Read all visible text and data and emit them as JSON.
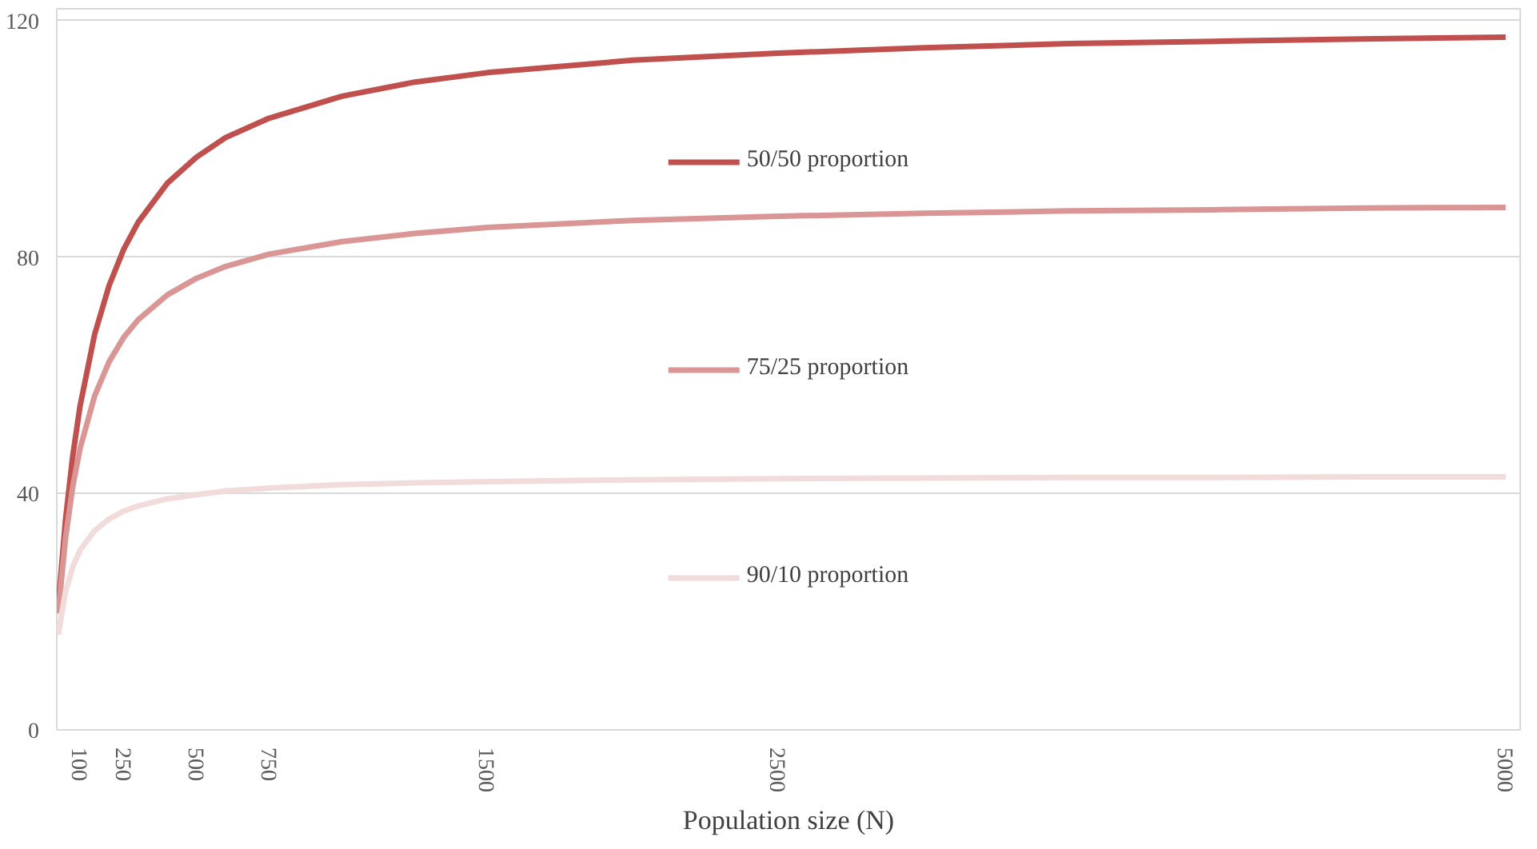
{
  "chart_data": {
    "type": "line",
    "xlabel": "Population size (N)",
    "x": [
      25,
      50,
      75,
      100,
      150,
      200,
      250,
      300,
      400,
      500,
      600,
      750,
      1000,
      1250,
      1500,
      2000,
      2500,
      3000,
      3500,
      4000,
      4500,
      5000
    ],
    "series": [
      {
        "name": "50/50 proportion",
        "color": "#c0504d",
        "values": [
          21,
          35.5,
          46.4,
          54.8,
          66.9,
          75.2,
          81.3,
          85.9,
          92.5,
          96.9,
          100.2,
          103.5,
          107.2,
          109.6,
          111.2,
          113.3,
          114.5,
          115.4,
          116.1,
          116.5,
          116.9,
          117.2
        ]
      },
      {
        "name": "75/25 proportion",
        "color": "#d99694",
        "values": [
          19.7,
          32.4,
          41.2,
          47.6,
          56.5,
          62.3,
          66.4,
          69.4,
          73.6,
          76.4,
          78.4,
          80.5,
          82.6,
          84.0,
          85.0,
          86.2,
          86.9,
          87.4,
          87.8,
          88.0,
          88.3,
          88.4
        ]
      },
      {
        "name": "90/10 proportion",
        "color": "#f2dcdb",
        "values": [
          16.1,
          23.4,
          27.6,
          30.4,
          33.7,
          35.7,
          37.0,
          37.9,
          39.1,
          39.8,
          40.4,
          40.9,
          41.5,
          41.8,
          42.0,
          42.3,
          42.5,
          42.6,
          42.7,
          42.7,
          42.8,
          42.8
        ]
      }
    ],
    "xlim": [
      20,
      5050
    ],
    "xticks": [
      100,
      250,
      500,
      750,
      1500,
      2500,
      5000
    ],
    "ylim": [
      0,
      122
    ],
    "yticks": [
      0,
      40,
      80,
      120
    ],
    "grid": "y",
    "legend": "center",
    "line_style": "solid",
    "marker": "none"
  }
}
